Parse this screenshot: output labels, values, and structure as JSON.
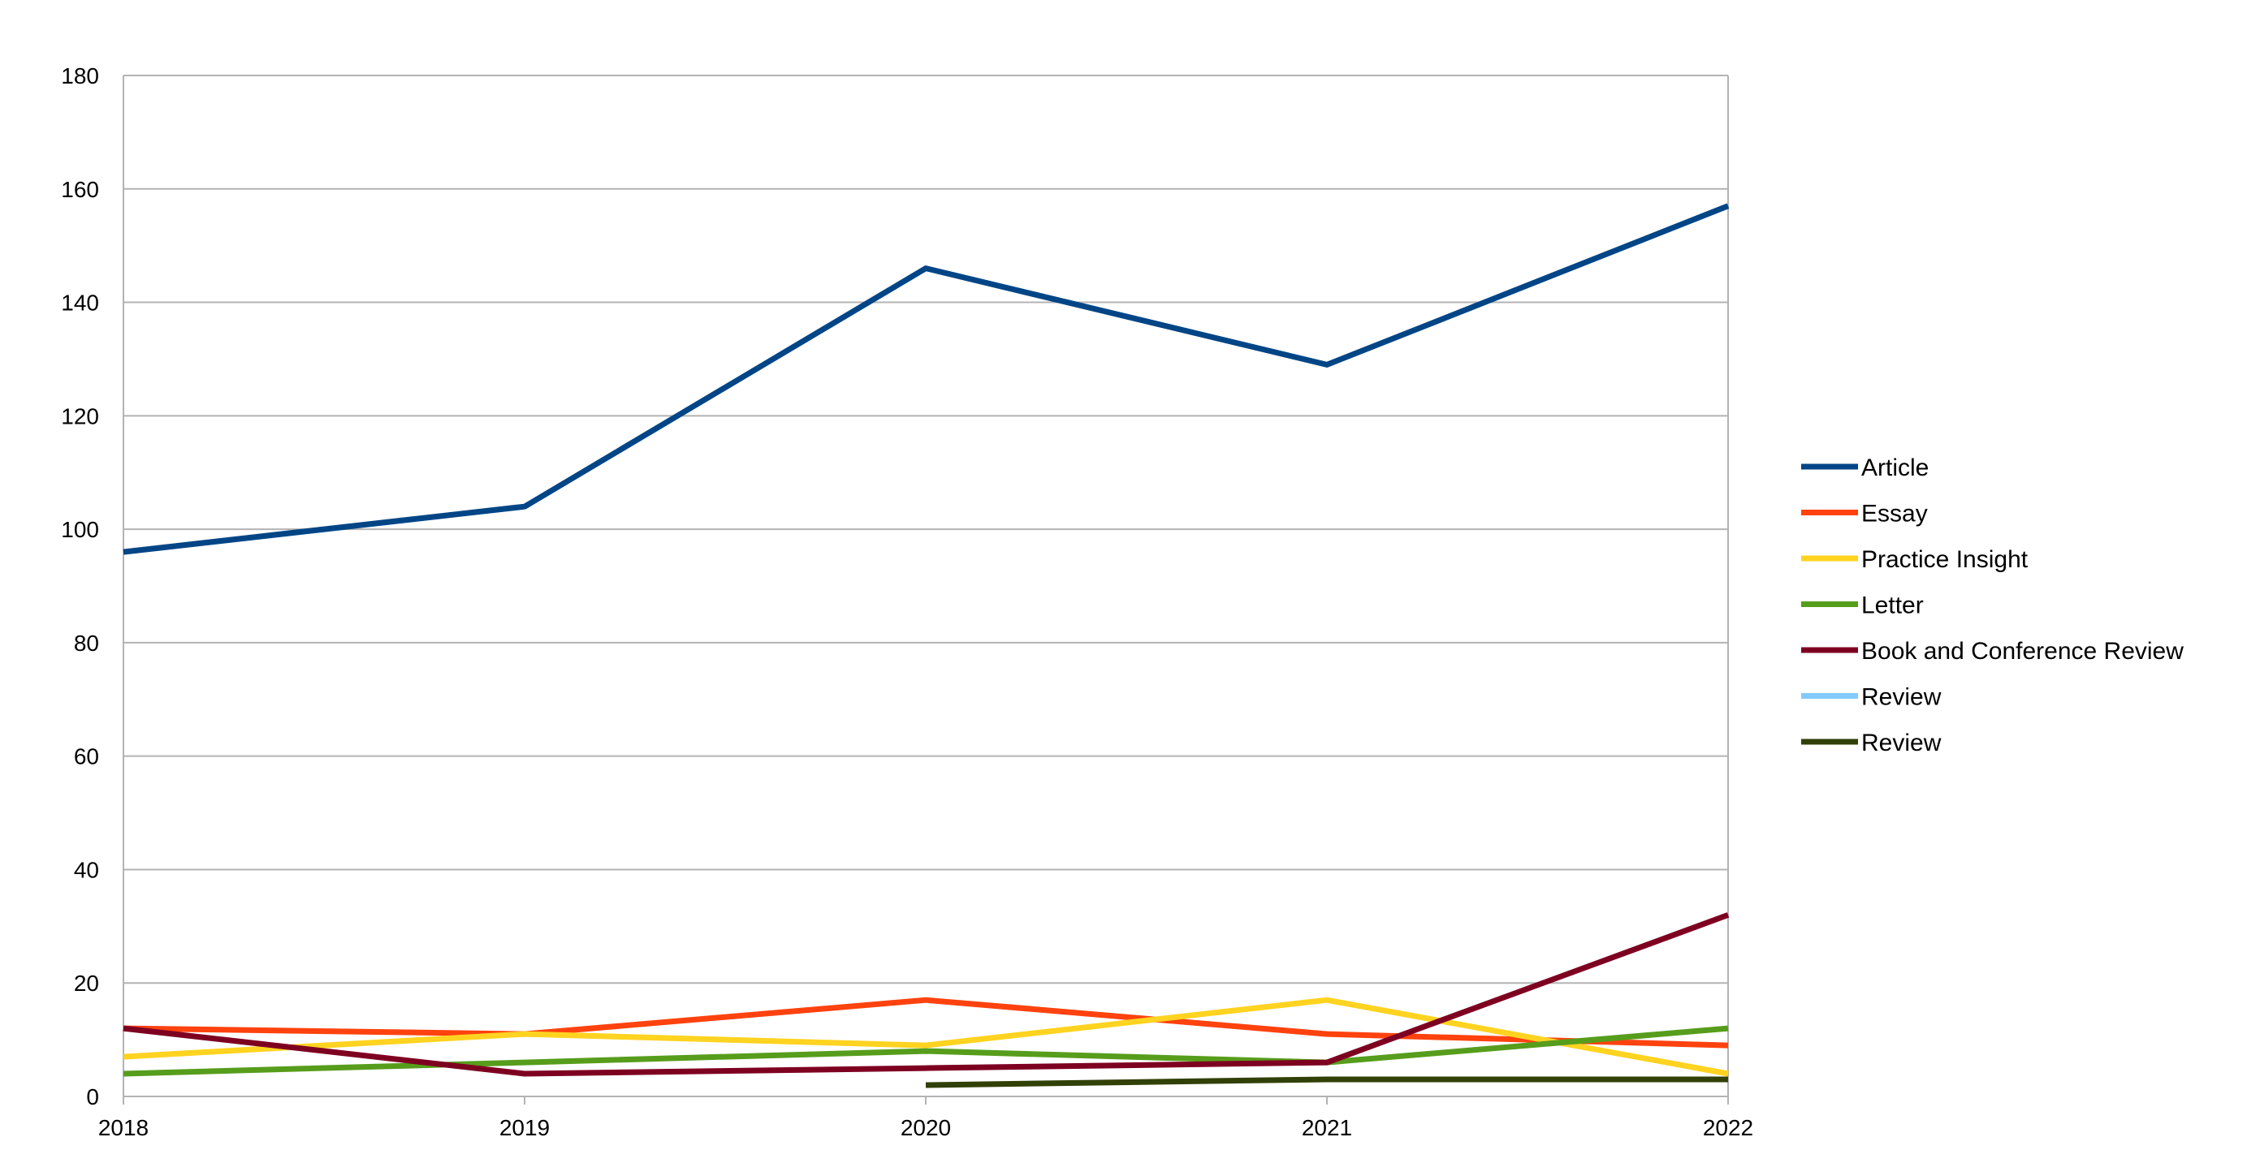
{
  "chart_data": {
    "type": "line",
    "title": "",
    "xlabel": "",
    "ylabel": "",
    "x": [
      2018,
      2019,
      2020,
      2021,
      2022
    ],
    "x_tick_labels": [
      "2018",
      "2019",
      "2020",
      "2021",
      "2022"
    ],
    "ylim": [
      0,
      180
    ],
    "y_ticks": [
      0,
      20,
      40,
      60,
      80,
      100,
      120,
      140,
      160,
      180
    ],
    "y_tick_labels": [
      "0",
      "20",
      "40",
      "60",
      "80",
      "100",
      "120",
      "140",
      "160",
      "180"
    ],
    "grid": true,
    "legend_position": "right",
    "series": [
      {
        "name": "Article",
        "color": "#004586",
        "values": [
          96,
          104,
          146,
          129,
          157
        ]
      },
      {
        "name": "Essay",
        "color": "#ff420e",
        "values": [
          12,
          11,
          17,
          11,
          9
        ]
      },
      {
        "name": "Practice Insight",
        "color": "#ffd320",
        "values": [
          7,
          11,
          9,
          17,
          4
        ]
      },
      {
        "name": "Letter",
        "color": "#579d1c",
        "values": [
          4,
          6,
          8,
          6,
          12
        ]
      },
      {
        "name": "Book and Conference Review",
        "color": "#7e0021",
        "values": [
          12,
          4,
          5,
          6,
          32
        ]
      },
      {
        "name": "Review",
        "color": "#83caff",
        "values": [
          null,
          null,
          null,
          null,
          null
        ]
      },
      {
        "name": "Review",
        "color": "#314004",
        "values": [
          null,
          null,
          2,
          3,
          3
        ]
      }
    ]
  }
}
